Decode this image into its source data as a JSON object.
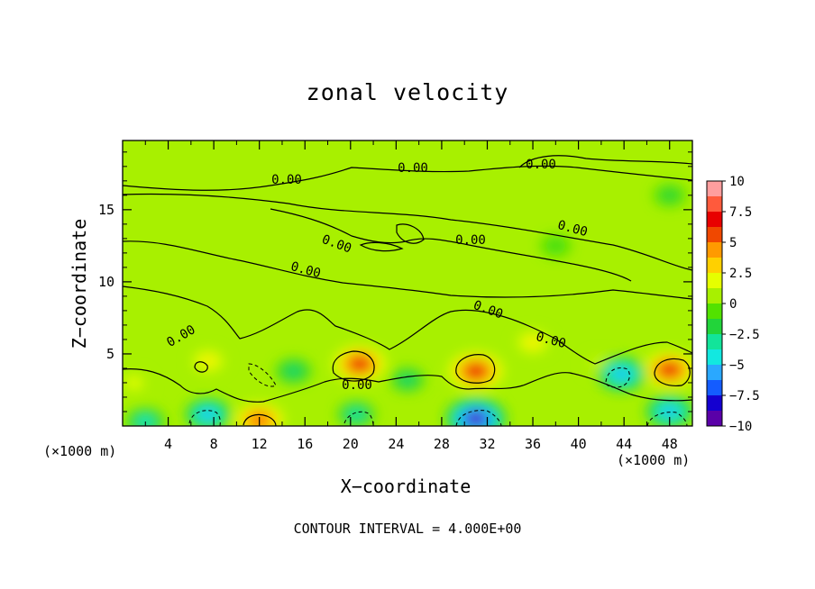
{
  "chart_data": {
    "type": "heatmap",
    "title": "zonal velocity",
    "xlabel": "X−coordinate",
    "ylabel": "Z−coordinate",
    "x_unit_note": "(×1000 m)",
    "contour_interval_text": "CONTOUR INTERVAL = 4.000E+00",
    "xlim": [
      0,
      50
    ],
    "ylim": [
      0,
      19.8
    ],
    "x_ticks": [
      4,
      8,
      12,
      16,
      20,
      24,
      28,
      32,
      36,
      40,
      44,
      48
    ],
    "y_ticks": [
      5,
      10,
      15
    ],
    "colorbar": {
      "range": [
        -10,
        10
      ],
      "tick_values": [
        10,
        7.5,
        5,
        2.5,
        0,
        -2.5,
        -5,
        -7.5,
        -10
      ],
      "tick_labels": [
        "10",
        "7.5",
        "5",
        "2.5",
        "0",
        "−2.5",
        "−5",
        "−7.5",
        "−10"
      ],
      "colors": [
        "#ff9e9e",
        "#ff5a3c",
        "#e80000",
        "#f04800",
        "#ff9a00",
        "#ffd000",
        "#e6ff00",
        "#a8f000",
        "#52e200",
        "#22d43a",
        "#12e49a",
        "#12e8e0",
        "#2aa8ff",
        "#145cff",
        "#1400d0",
        "#5a00a8"
      ]
    },
    "contour_labels": [
      "0.00",
      "0.00",
      "0.00",
      "0.00",
      "0.00",
      "0.00",
      "0.00",
      "0.00",
      "0.00",
      "0.00",
      "0.00"
    ],
    "anomalies": [
      {
        "x": 7.5,
        "z": 4.5,
        "u": 3.0
      },
      {
        "x": 12.0,
        "z": 0.4,
        "u": 6.0
      },
      {
        "x": 20.8,
        "z": 4.3,
        "u": 7.0
      },
      {
        "x": 31.0,
        "z": 3.8,
        "u": 7.5
      },
      {
        "x": 48.0,
        "z": 3.9,
        "u": 7.0
      },
      {
        "x": 36.0,
        "z": 5.8,
        "u": 3.0
      },
      {
        "x": 42.0,
        "z": 4.2,
        "u": 2.5
      },
      {
        "x": 1.0,
        "z": 3.0,
        "u": 2.5
      },
      {
        "x": 15.0,
        "z": 3.8,
        "u": -3.0
      },
      {
        "x": 25.0,
        "z": 3.2,
        "u": -2.5
      },
      {
        "x": 7.5,
        "z": 0.8,
        "u": -5.0
      },
      {
        "x": 2.0,
        "z": 0.3,
        "u": -4.0
      },
      {
        "x": 20.5,
        "z": 0.8,
        "u": -3.5
      },
      {
        "x": 31.0,
        "z": 0.5,
        "u": -9.0
      },
      {
        "x": 43.8,
        "z": 3.6,
        "u": -6.0
      },
      {
        "x": 48.0,
        "z": 1.0,
        "u": -5.5
      },
      {
        "x": 38.0,
        "z": 12.5,
        "u": -1.5
      },
      {
        "x": 48.0,
        "z": 16.0,
        "u": -2.0
      }
    ]
  }
}
